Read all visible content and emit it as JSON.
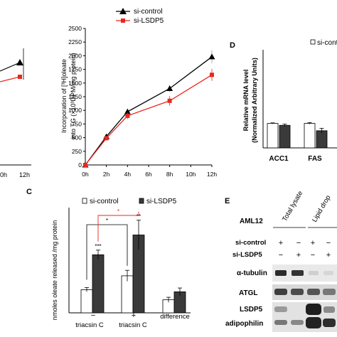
{
  "panelB": {
    "legend": [
      {
        "name": "si-control",
        "color": "#000000",
        "marker": "triangle"
      },
      {
        "name": "si-LSDP5",
        "color": "#e8281e",
        "marker": "square"
      }
    ],
    "ylabel_1": "Incorporation of [³H]oleate",
    "ylabel_2": "into TG (×10³DPM/mg protein)",
    "yticks": [
      "0",
      "250",
      "500",
      "750",
      "1000",
      "1250",
      "1500",
      "1750",
      "2000",
      "2250",
      "2500"
    ],
    "xticks": [
      "0h",
      "2h",
      "4h",
      "6h",
      "8h",
      "10h",
      "12h"
    ],
    "left_xticks": [
      "0h",
      "12h"
    ]
  },
  "panelC": {
    "letter": "C",
    "legend": [
      {
        "name": "si-control",
        "color": "#ffffff"
      },
      {
        "name": "si-LSDP5",
        "color": "#3a3a3a"
      }
    ],
    "ylabel": "nmoles oleate released /mg protein",
    "groups": [
      {
        "sign": "−",
        "label": "triacsin C"
      },
      {
        "sign": "+",
        "label": "triacsin C"
      },
      {
        "sign": "",
        "label": "difference"
      }
    ],
    "sig_labels": [
      "***",
      "**",
      "*",
      "*"
    ]
  },
  "panelD": {
    "letter": "D",
    "legend_label": "si-control",
    "ylabel_1": "Relative mRNA level",
    "ylabel_2": "(Normalized Arbitrary Units)",
    "categories": [
      "ACC1",
      "FAS"
    ]
  },
  "panelE": {
    "letter": "E",
    "cell_line": "AML12",
    "col_headers": [
      "Total lysate",
      "Lipid drop"
    ],
    "row_labels": [
      "si-control",
      "si-LSDP5"
    ],
    "row1_signs": [
      "+",
      "−",
      "+",
      "−"
    ],
    "row2_signs": [
      "−",
      "+",
      "−",
      "+"
    ],
    "bands": [
      "α-tubulin",
      "ATGL",
      "LSDP5",
      "adipophilin"
    ]
  },
  "chart_data": [
    {
      "type": "line",
      "x": [
        0,
        2,
        4,
        8,
        12
      ],
      "xlim": [
        0,
        12
      ],
      "ylim": [
        0,
        2500
      ],
      "series": [
        {
          "name": "si-control",
          "values": [
            0,
            520,
            975,
            1400,
            1980
          ]
        },
        {
          "name": "si-LSDP5",
          "values": [
            0,
            490,
            900,
            1175,
            1650
          ]
        }
      ],
      "legend_position": "top-left"
    },
    {
      "type": "bar",
      "categories": [
        "− triacsin C",
        "+ triacsin C",
        "difference"
      ],
      "series": [
        {
          "name": "si-control",
          "values": [
            5.5,
            8.8,
            3.1
          ]
        },
        {
          "name": "si-LSDP5",
          "values": [
            13.8,
            18.5,
            5.0
          ]
        }
      ],
      "ylim": [
        0,
        25
      ],
      "legend_position": "top"
    },
    {
      "type": "bar",
      "categories": [
        "ACC1",
        "FAS"
      ],
      "series": [
        {
          "name": "si-control",
          "values": [
            1.0,
            1.0
          ]
        },
        {
          "name": "si-LSDP5",
          "values": [
            0.92,
            0.7
          ]
        }
      ],
      "ylim": [
        0,
        4
      ]
    }
  ]
}
